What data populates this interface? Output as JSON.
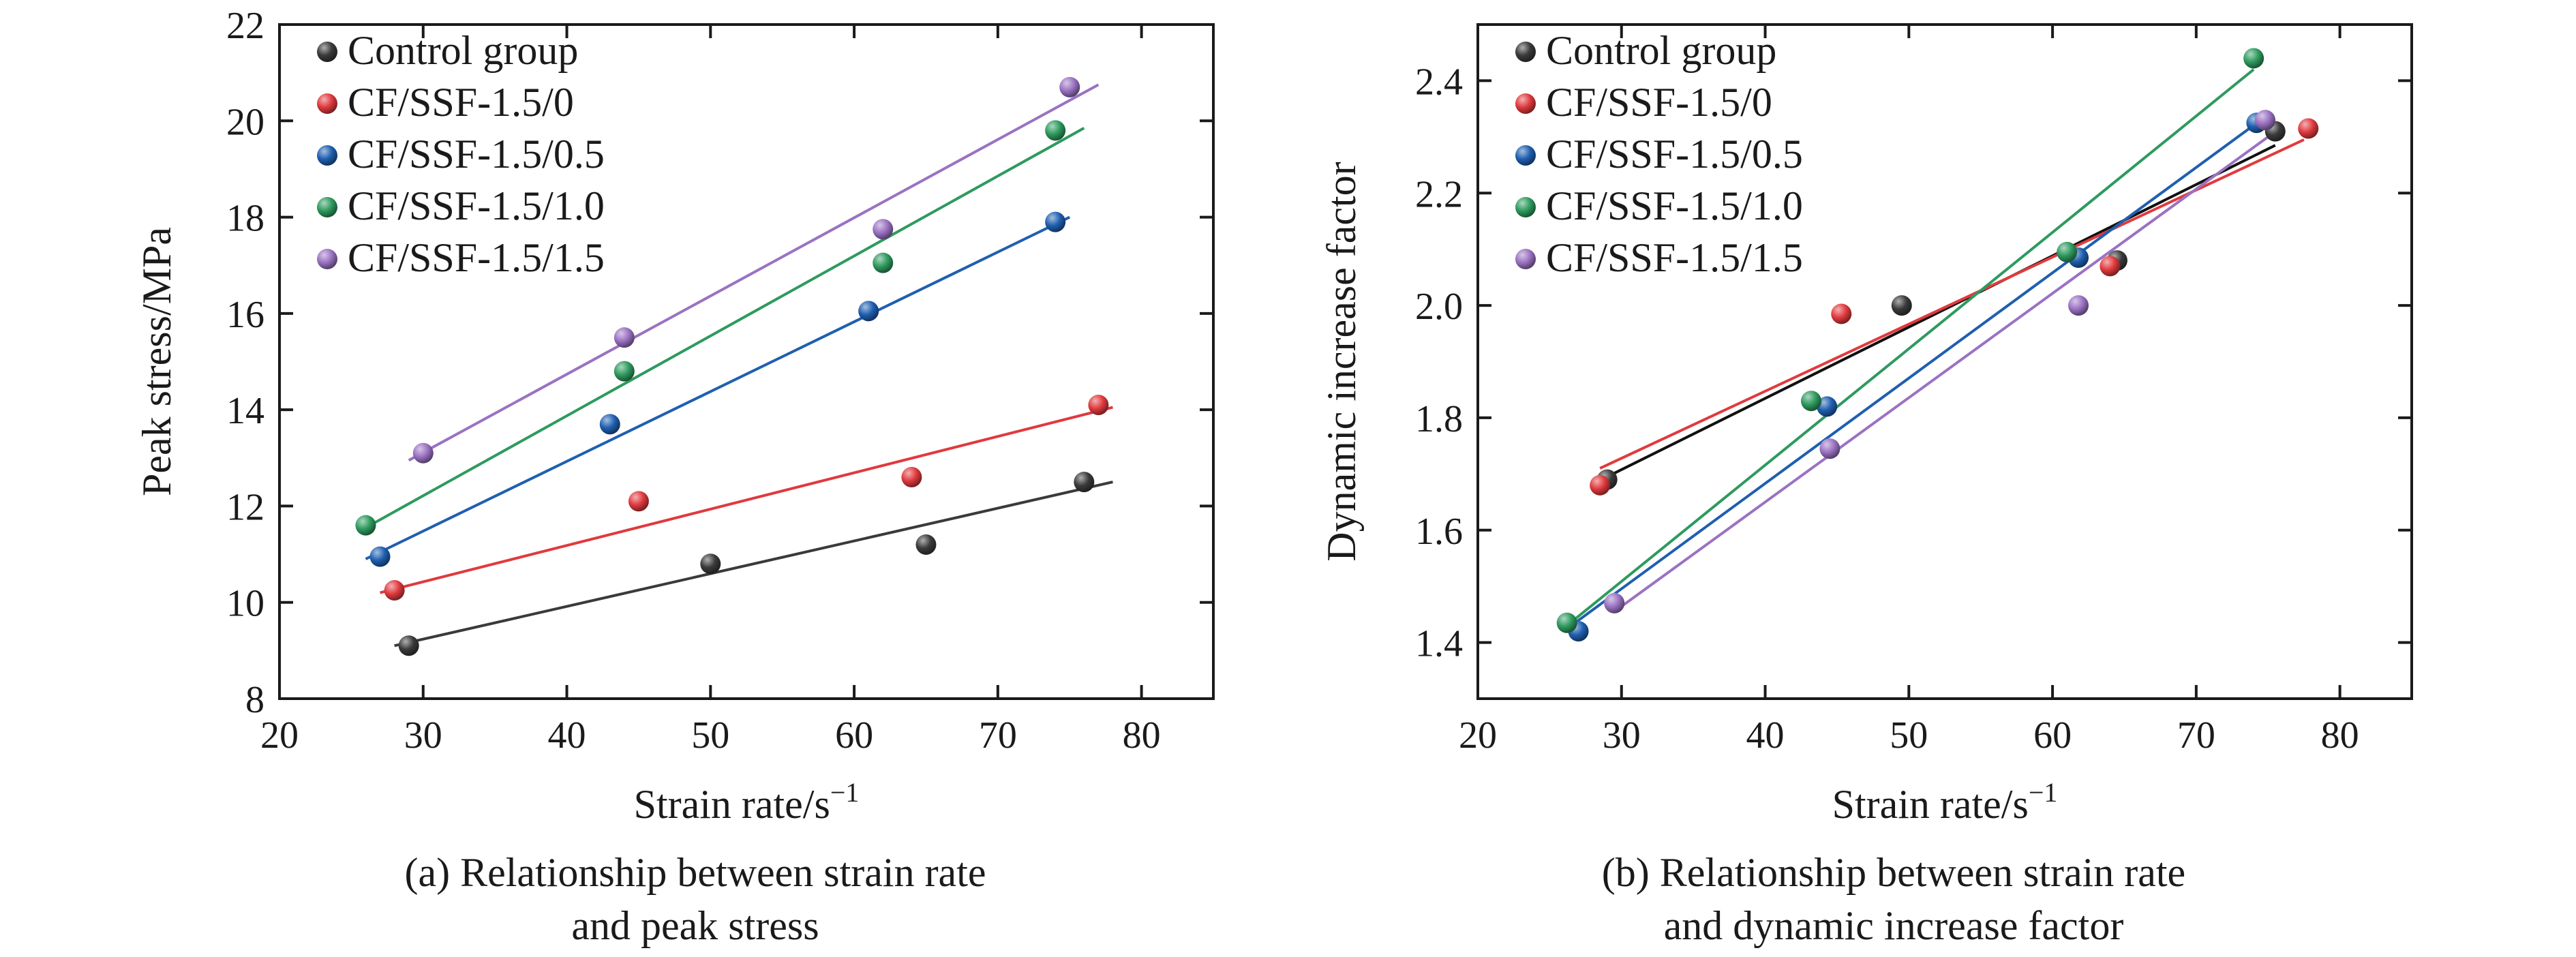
{
  "colors": {
    "control": "#3a3a3a",
    "cf0": "#e03a3e",
    "cf05": "#1f5fb0",
    "cf10": "#2e9a5e",
    "cf15": "#9a72c2"
  },
  "chart_data": [
    {
      "type": "scatter",
      "xlabel": "Strain rate/s",
      "xlabel_sup": "−1",
      "ylabel": "Peak stress/MPa",
      "caption_line1": "(a) Relationship between strain rate",
      "caption_line2": "and peak stress",
      "xlim": [
        20,
        85
      ],
      "ylim": [
        8,
        22
      ],
      "x_ticks": [
        20,
        30,
        40,
        50,
        60,
        70,
        80
      ],
      "y_ticks": [
        8,
        10,
        12,
        14,
        16,
        18,
        20,
        22
      ],
      "grid": false,
      "legend_position": "top-left",
      "series": [
        {
          "name": "Control group",
          "color": "#3a3a3a",
          "line_color": "#3a3a3a",
          "x": [
            29,
            50,
            65,
            76
          ],
          "y": [
            9.1,
            10.8,
            11.2,
            12.5
          ],
          "fit": [
            [
              28,
              9.1
            ],
            [
              78,
              12.5
            ]
          ]
        },
        {
          "name": "CF/SSF-1.5/0",
          "color": "#e03a3e",
          "line_color": "#e03a3e",
          "x": [
            28,
            45,
            64,
            77
          ],
          "y": [
            10.25,
            12.1,
            12.6,
            14.1
          ],
          "fit": [
            [
              27,
              10.2
            ],
            [
              78,
              14.05
            ]
          ]
        },
        {
          "name": "CF/SSF-1.5/0.5",
          "color": "#1f5fb0",
          "line_color": "#1f5fb0",
          "x": [
            27,
            43,
            61,
            74
          ],
          "y": [
            10.95,
            13.7,
            16.05,
            17.9
          ],
          "fit": [
            [
              26,
              10.9
            ],
            [
              75,
              18.0
            ]
          ]
        },
        {
          "name": "CF/SSF-1.5/1.0",
          "color": "#2e9a5e",
          "line_color": "#2e9a5e",
          "x": [
            26,
            44,
            62,
            74
          ],
          "y": [
            11.6,
            14.8,
            17.05,
            19.8
          ],
          "fit": [
            [
              26,
              11.55
            ],
            [
              76,
              19.85
            ]
          ]
        },
        {
          "name": "CF/SSF-1.5/1.5",
          "color": "#9a72c2",
          "line_color": "#9a72c2",
          "x": [
            30,
            44,
            62,
            75
          ],
          "y": [
            13.1,
            15.5,
            17.75,
            20.7
          ],
          "fit": [
            [
              29,
              12.95
            ],
            [
              77,
              20.75
            ]
          ]
        }
      ]
    },
    {
      "type": "scatter",
      "xlabel": "Strain rate/s",
      "xlabel_sup": "−1",
      "ylabel": "Dynamic increase factor",
      "caption_line1": "(b) Relationship between strain rate",
      "caption_line2": "and dynamic increase factor",
      "xlim": [
        20,
        85
      ],
      "ylim": [
        1.3,
        2.5
      ],
      "x_ticks": [
        20,
        30,
        40,
        50,
        60,
        70,
        80
      ],
      "y_ticks": [
        1.4,
        1.6,
        1.8,
        2.0,
        2.2,
        2.4
      ],
      "y_decimals": 1,
      "grid": false,
      "legend_position": "top-left",
      "series": [
        {
          "name": "Control group",
          "color": "#3a3a3a",
          "line_color": "#111111",
          "x": [
            29,
            49.5,
            64.5,
            75.5
          ],
          "y": [
            1.69,
            2.0,
            2.08,
            2.31
          ],
          "fit": [
            [
              29,
              1.695
            ],
            [
              75.5,
              2.285
            ]
          ]
        },
        {
          "name": "CF/SSF-1.5/0",
          "color": "#e03a3e",
          "line_color": "#e03a3e",
          "x": [
            28.5,
            45.3,
            64,
            77.8
          ],
          "y": [
            1.68,
            1.985,
            2.07,
            2.315
          ],
          "fit": [
            [
              28.5,
              1.71
            ],
            [
              77.5,
              2.295
            ]
          ]
        },
        {
          "name": "CF/SSF-1.5/0.5",
          "color": "#1f5fb0",
          "line_color": "#1f5fb0",
          "x": [
            27,
            44.3,
            61.8,
            74.2
          ],
          "y": [
            1.42,
            1.82,
            2.085,
            2.325
          ],
          "fit": [
            [
              26.5,
              1.43
            ],
            [
              74.5,
              2.33
            ]
          ]
        },
        {
          "name": "CF/SSF-1.5/1.0",
          "color": "#2e9a5e",
          "line_color": "#2e9a5e",
          "x": [
            26.2,
            43.2,
            61,
            74
          ],
          "y": [
            1.435,
            1.83,
            2.095,
            2.44
          ],
          "fit": [
            [
              26.2,
              1.43
            ],
            [
              74,
              2.42
            ]
          ]
        },
        {
          "name": "CF/SSF-1.5/1.5",
          "color": "#9a72c2",
          "line_color": "#9a72c2",
          "x": [
            29.5,
            44.5,
            61.8,
            74.8
          ],
          "y": [
            1.47,
            1.745,
            2.0,
            2.33
          ],
          "fit": [
            [
              29.5,
              1.455
            ],
            [
              75,
              2.3
            ]
          ]
        }
      ]
    }
  ]
}
